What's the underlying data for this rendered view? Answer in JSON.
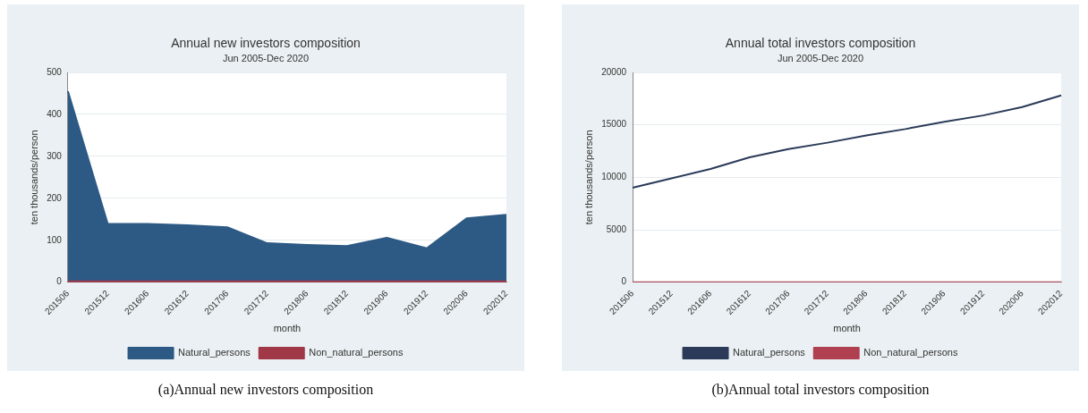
{
  "chart_data": [
    {
      "type": "area",
      "title": "Annual new investors composition",
      "subtitle": "Jun 2005-Dec 2020",
      "xlabel": "month",
      "ylabel": "ten thousands/person",
      "categories": [
        "201506",
        "201512",
        "201606",
        "201612",
        "201706",
        "201712",
        "201806",
        "201812",
        "201906",
        "201912",
        "202006",
        "202012"
      ],
      "series": [
        {
          "name": "Natural_persons",
          "color": "#2d5a84",
          "values": [
            455,
            139,
            139,
            136,
            131,
            93,
            89,
            86,
            106,
            81,
            152,
            161
          ]
        },
        {
          "name": "Non_natural_persons",
          "color": "#a03848",
          "values": [
            2,
            2,
            2,
            2,
            2,
            2,
            2,
            2,
            2,
            2,
            2,
            2
          ]
        }
      ],
      "ylim": [
        0,
        500
      ],
      "yticks": [
        0,
        100,
        200,
        300,
        400,
        500
      ],
      "grid": "y",
      "legend": "bottom",
      "annotations": [
        "(a)Annual new investors composition"
      ]
    },
    {
      "type": "line",
      "title": "Annual total investors composition",
      "subtitle": "Jun 2005-Dec 2020",
      "xlabel": "month",
      "ylabel": "ten thousands/person",
      "categories": [
        "201506",
        "201512",
        "201606",
        "201612",
        "201706",
        "201712",
        "201806",
        "201812",
        "201906",
        "201912",
        "202006",
        "202012"
      ],
      "series": [
        {
          "name": "Natural_persons",
          "color": "#2a3a58",
          "values": [
            9000,
            9900,
            10800,
            11900,
            12700,
            13300,
            14000,
            14600,
            15300,
            15900,
            16700,
            17800
          ]
        },
        {
          "name": "Non_natural_persons",
          "color": "#b04050",
          "values": [
            0,
            0,
            0,
            0,
            0,
            0,
            0,
            0,
            0,
            0,
            0,
            0
          ]
        }
      ],
      "ylim": [
        0,
        20000
      ],
      "yticks": [
        0,
        5000,
        10000,
        15000,
        20000
      ],
      "grid": "y",
      "legend": "bottom",
      "annotations": [
        "(b)Annual total investors composition"
      ]
    }
  ]
}
